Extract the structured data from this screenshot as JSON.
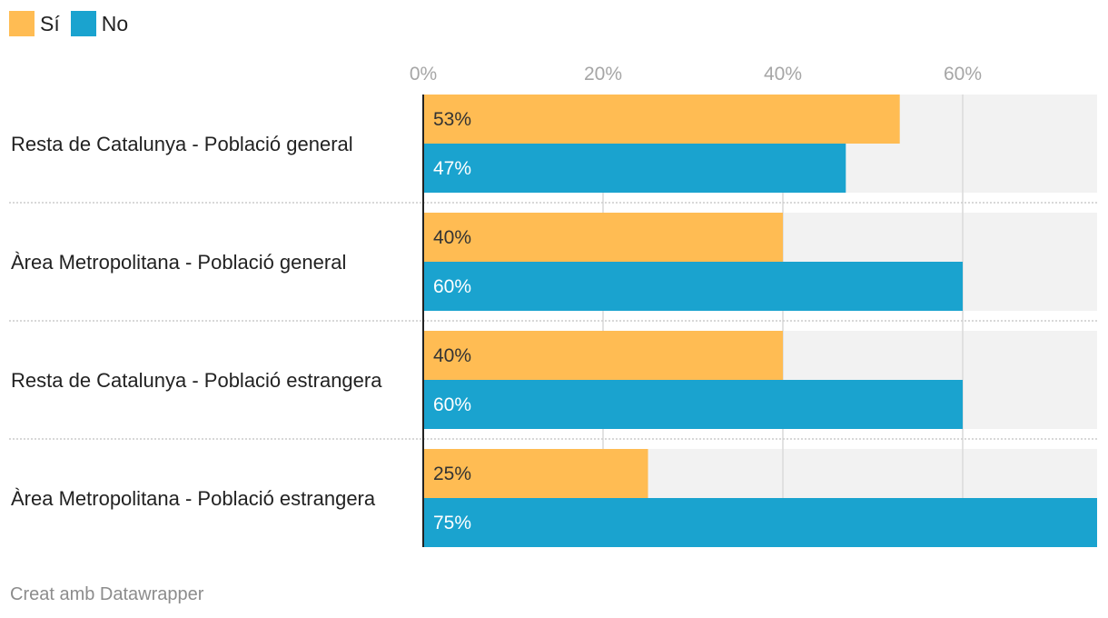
{
  "chart_data": {
    "type": "bar",
    "orientation": "horizontal",
    "categories": [
      "Resta de Catalunya - Població general",
      "Àrea Metropolitana - Població general",
      "Resta de Catalunya - Població estrangera",
      "Àrea Metropolitana - Població estrangera"
    ],
    "series": [
      {
        "name": "Sí",
        "color": "#FFBC53",
        "values": [
          53,
          40,
          40,
          25
        ],
        "labels": [
          "53%",
          "40%",
          "40%",
          "25%"
        ]
      },
      {
        "name": "No",
        "color": "#1AA3CF",
        "values": [
          47,
          60,
          60,
          75
        ],
        "labels": [
          "47%",
          "60%",
          "60%",
          "75%"
        ]
      }
    ],
    "x_ticks": [
      0,
      20,
      40,
      60
    ],
    "x_tick_labels": [
      "0%",
      "20%",
      "40%",
      "60%"
    ],
    "xlim": [
      0,
      75
    ],
    "grid": true,
    "legend": "top-left"
  },
  "legend": {
    "si_label": "Sí",
    "no_label": "No",
    "si_color": "#FFBC53",
    "no_color": "#1AA3CF"
  },
  "footer": {
    "credit": "Creat amb Datawrapper"
  }
}
